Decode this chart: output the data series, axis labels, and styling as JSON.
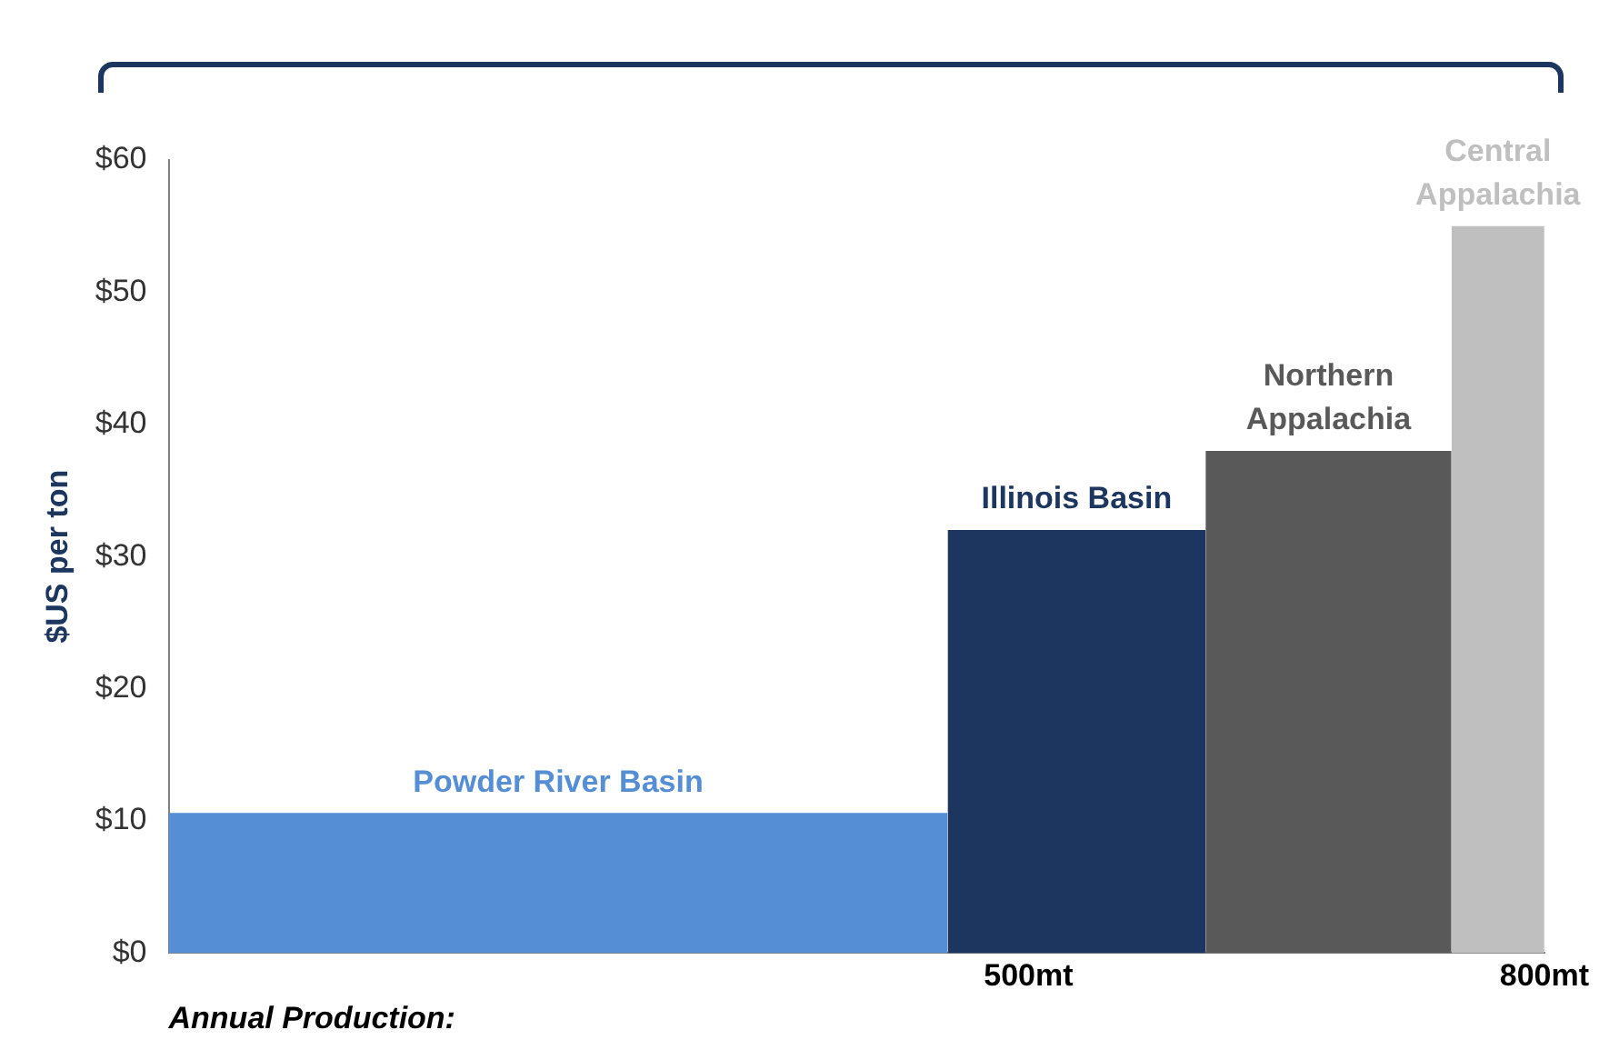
{
  "chart_data": {
    "type": "area",
    "xlabel": "Annual Production:",
    "ylabel": "$US per ton",
    "xlim": [
      0,
      800
    ],
    "xticks": [
      {
        "value": 500,
        "label": "500mt"
      },
      {
        "value": 800,
        "label": "800mt"
      }
    ],
    "ylim": [
      0,
      60
    ],
    "yticks": [
      {
        "value": 0,
        "label": "$0"
      },
      {
        "value": 10,
        "label": "$10"
      },
      {
        "value": 20,
        "label": "$20"
      },
      {
        "value": 30,
        "label": "$30"
      },
      {
        "value": 40,
        "label": "$40"
      },
      {
        "value": 50,
        "label": "$50"
      },
      {
        "value": 60,
        "label": "$60"
      }
    ],
    "grid": false,
    "legend": false,
    "series": [
      {
        "name": "Powder River Basin",
        "color": "#558ed5",
        "x": [
          0,
          453
        ],
        "values": [
          10.6,
          10.6
        ]
      },
      {
        "name": "Illinois Basin",
        "color": "#1c3660",
        "x": [
          453,
          603
        ],
        "values": [
          32,
          32
        ]
      },
      {
        "name": "Northern Appalachia",
        "color": "#595959",
        "x": [
          603,
          746
        ],
        "values": [
          38,
          38
        ]
      },
      {
        "name": "Central Appalachia",
        "color": "#bfbfbf",
        "x": [
          746,
          800
        ],
        "values": [
          55,
          55
        ]
      }
    ]
  }
}
